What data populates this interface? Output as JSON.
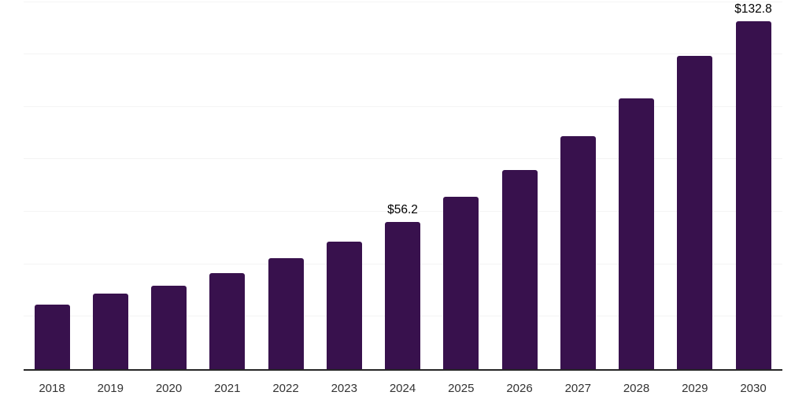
{
  "chart_data": {
    "type": "bar",
    "title": "",
    "xlabel": "",
    "ylabel": "",
    "categories": [
      "2018",
      "2019",
      "2020",
      "2021",
      "2022",
      "2023",
      "2024",
      "2025",
      "2026",
      "2027",
      "2028",
      "2029",
      "2030"
    ],
    "values": [
      24.7,
      28.9,
      31.9,
      36.7,
      42.4,
      48.7,
      56.2,
      65.7,
      75.9,
      88.8,
      103.2,
      119.4,
      132.8
    ],
    "data_labels": [
      "",
      "",
      "",
      "",
      "",
      "",
      "$56.2",
      "",
      "",
      "",
      "",
      "",
      "$132.8"
    ],
    "ylim": [
      0,
      140
    ],
    "gridline_step": 20,
    "grid": true,
    "legend": false,
    "colors": {
      "bar": "#38114d",
      "gridline": "#f4f4f4",
      "axis_line": "#262626",
      "tick_label": "#333333",
      "data_label": "#000000",
      "background": "#ffffff"
    }
  }
}
